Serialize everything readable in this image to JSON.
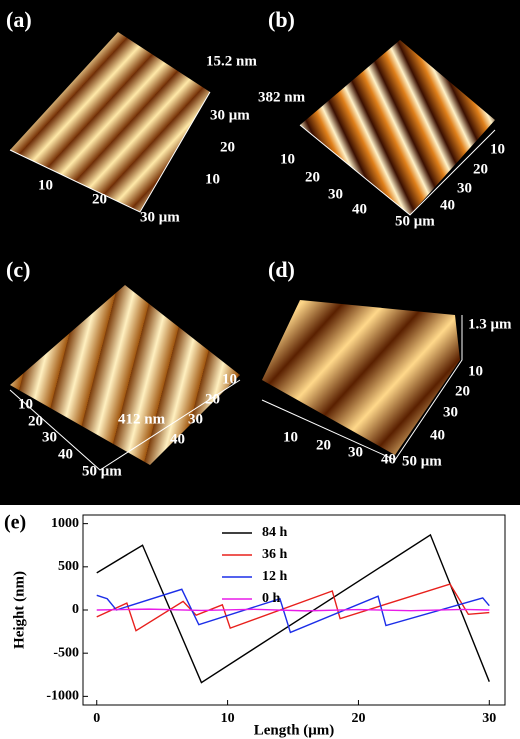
{
  "panels": [
    {
      "label": "(a)",
      "height": "15.2 nm",
      "texts": [
        "30 μm",
        "20",
        "10",
        "10",
        "20",
        "30 μm"
      ]
    },
    {
      "label": "(b)",
      "height": "382 nm",
      "texts": [
        "10",
        "20",
        "30",
        "40",
        "50 μm",
        "10",
        "20",
        "30",
        "40"
      ]
    },
    {
      "label": "(c)",
      "height": "412 nm",
      "texts": [
        "10",
        "20",
        "30",
        "40",
        "50 μm",
        "10",
        "20",
        "30",
        "40"
      ]
    },
    {
      "label": "(d)",
      "height": "1.3 μm",
      "texts": [
        "10",
        "20",
        "30",
        "40",
        "50 μm",
        "10",
        "20",
        "30",
        "40"
      ]
    }
  ],
  "chart_data": {
    "type": "line",
    "label": "(e)",
    "x_label": "Length (μm)",
    "y_label": "Height (nm)",
    "xlim": [
      -1.05,
      31.2
    ],
    "ylim": [
      -1100,
      1100
    ],
    "xticks": [
      0,
      10,
      20,
      30
    ],
    "yticks": [
      -1000,
      -500,
      0,
      500,
      1000
    ],
    "series": [
      {
        "name": "84 h",
        "color": "#000000",
        "x": [
          0,
          3.5,
          8,
          25.5,
          30
        ],
        "values": [
          430,
          750,
          -840,
          870,
          -830
        ]
      },
      {
        "name": "36 h",
        "color": "#e8201c",
        "x": [
          0,
          2.3,
          3,
          6.6,
          7.6,
          9.6,
          10.2,
          18,
          18.6,
          27,
          28.4,
          30
        ],
        "values": [
          -80,
          80,
          -240,
          100,
          -60,
          60,
          -210,
          220,
          -100,
          300,
          -50,
          -30
        ]
      },
      {
        "name": "12 h",
        "color": "#1c2ee8",
        "x": [
          0,
          0.8,
          1.5,
          6.5,
          7.8,
          14,
          14.8,
          21.5,
          22.1,
          29.5,
          30
        ],
        "values": [
          170,
          130,
          0,
          240,
          -170,
          130,
          -260,
          160,
          -180,
          140,
          50
        ]
      },
      {
        "name": "0 h",
        "color": "#e81ce8",
        "x": [
          0,
          4,
          8,
          12,
          16,
          20,
          24,
          28,
          30
        ],
        "values": [
          0,
          10,
          -5,
          8,
          -10,
          5,
          -8,
          6,
          0
        ]
      }
    ]
  }
}
